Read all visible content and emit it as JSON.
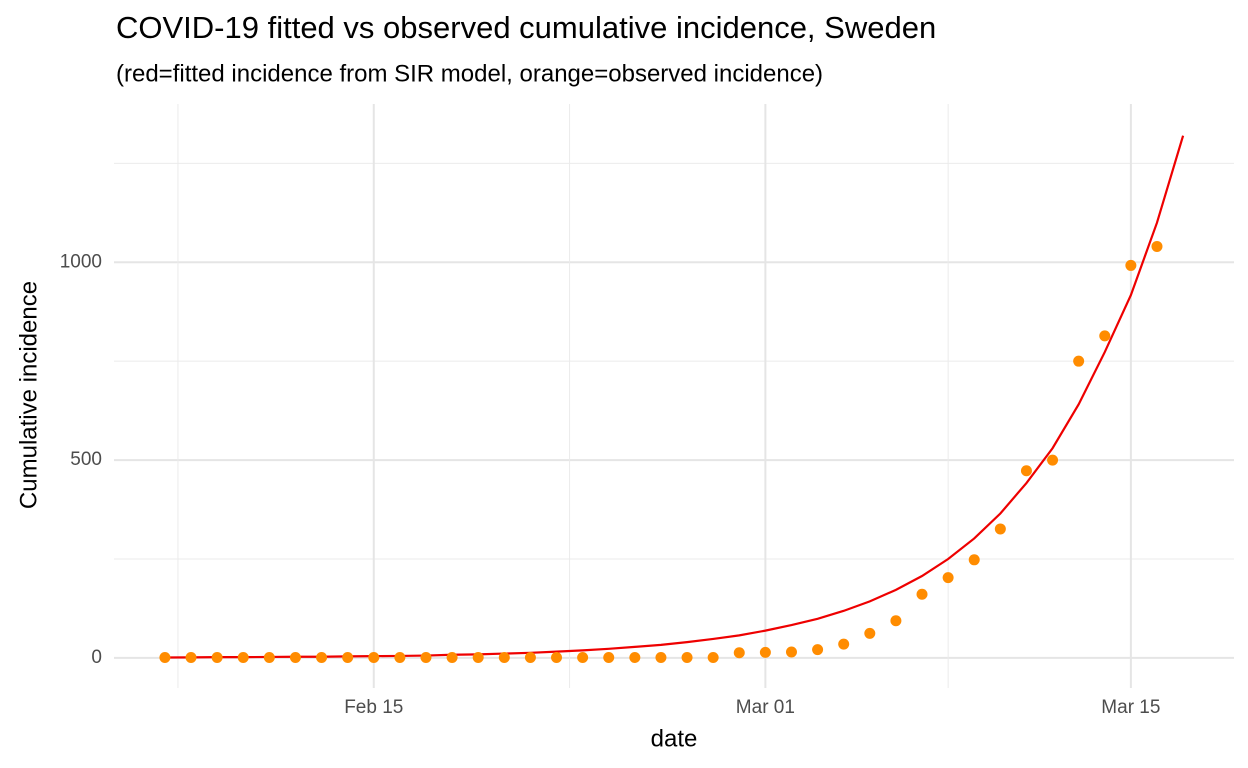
{
  "chart_data": {
    "type": "line",
    "title": "COVID-19 fitted vs observed cumulative incidence, Sweden",
    "subtitle": "(red=fitted incidence from SIR model, orange=observed incidence)",
    "x_label": "date",
    "y_label": "Cumulative incidence",
    "x": [
      "Feb 07",
      "Feb 08",
      "Feb 09",
      "Feb 10",
      "Feb 11",
      "Feb 12",
      "Feb 13",
      "Feb 14",
      "Feb 15",
      "Feb 16",
      "Feb 17",
      "Feb 18",
      "Feb 19",
      "Feb 20",
      "Feb 21",
      "Feb 22",
      "Feb 23",
      "Feb 24",
      "Feb 25",
      "Feb 26",
      "Feb 27",
      "Feb 28",
      "Feb 29",
      "Mar 01",
      "Mar 02",
      "Mar 03",
      "Mar 04",
      "Mar 05",
      "Mar 06",
      "Mar 07",
      "Mar 08",
      "Mar 09",
      "Mar 10",
      "Mar 11",
      "Mar 12",
      "Mar 13",
      "Mar 14",
      "Mar 15",
      "Mar 16",
      "Mar 17"
    ],
    "xticks": [
      "Feb 15",
      "Mar 01",
      "Mar 15"
    ],
    "series": [
      {
        "mark": "line",
        "color": "#ee0000",
        "values": [
          1,
          1.5,
          2,
          2,
          2.5,
          3,
          3,
          4,
          4.5,
          5,
          6,
          8,
          9,
          11,
          13,
          16,
          19,
          23,
          28,
          33,
          40,
          48,
          57,
          69,
          83,
          99,
          119,
          143,
          172,
          207,
          250,
          302,
          365,
          442,
          530,
          641,
          773,
          917,
          1100,
          1320
        ]
      },
      {
        "mark": "point",
        "color": "#ff8c00",
        "values": [
          1,
          1,
          1,
          1,
          1,
          1,
          1,
          1,
          1,
          1,
          1,
          1,
          1,
          1,
          1,
          1,
          1,
          1,
          1,
          1,
          1,
          1,
          13,
          14,
          15,
          21,
          35,
          62,
          94,
          161,
          203,
          248,
          326,
          473,
          500,
          750,
          814,
          992,
          1040,
          null
        ]
      }
    ],
    "ylim": [
      -76,
      1400
    ],
    "yticks": [
      0,
      500,
      1000
    ],
    "grid": true
  }
}
